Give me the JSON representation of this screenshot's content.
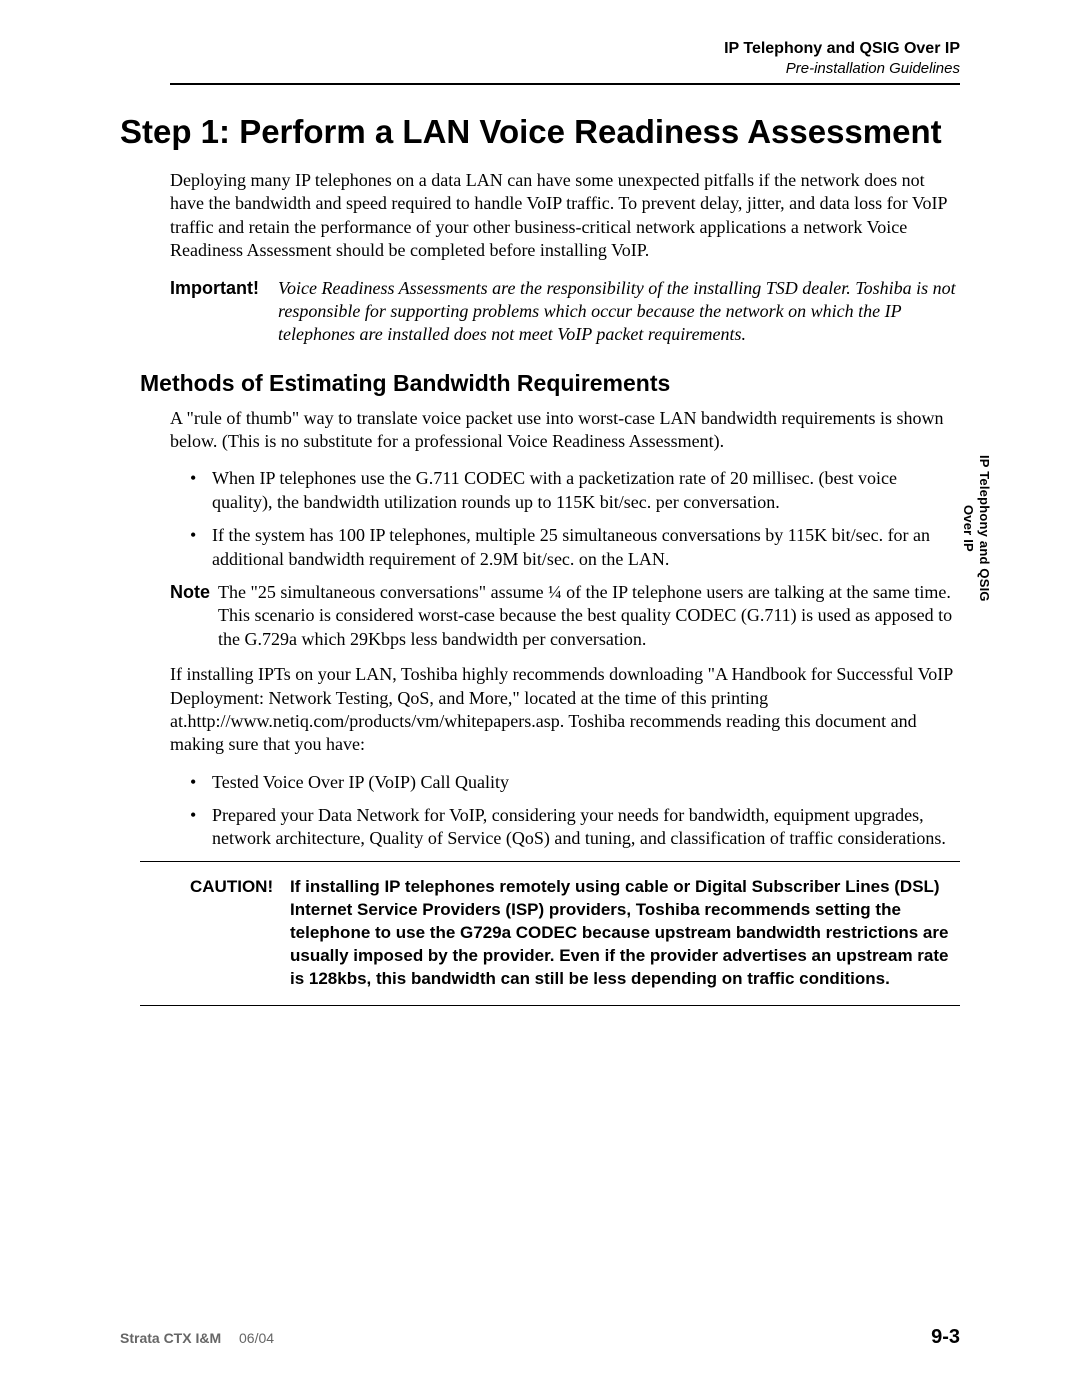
{
  "header": {
    "title": "IP Telephony and QSIG Over IP",
    "subtitle": "Pre-installation Guidelines"
  },
  "main": {
    "step_title": "Step 1:  Perform a LAN Voice Readiness Assessment",
    "intro": "Deploying many IP telephones on a data LAN can have some unexpected pitfalls if the network does not have the bandwidth and speed required to handle VoIP traffic. To prevent delay, jitter, and data loss for VoIP traffic and retain the performance of your other business-critical network applications a network Voice Readiness Assessment should be completed before installing VoIP.",
    "important_label": "Important!",
    "important_text": "Voice Readiness Assessments are the responsibility of the installing TSD dealer. Toshiba is not responsible for supporting problems which occur because the network on which the IP telephones are installed does not meet VoIP packet requirements.",
    "subheading": "Methods of Estimating Bandwidth Requirements",
    "sub_intro": "A \"rule of thumb\" way to translate voice packet use into worst-case LAN bandwidth requirements is shown below. (This is no substitute for a professional Voice Readiness Assessment).",
    "bullets1": [
      "When IP telephones use the G.711 CODEC with a packetization rate of 20 millisec. (best voice quality), the bandwidth utilization rounds up to 115K bit/sec. per conversation.",
      "If the system has 100 IP telephones, multiple 25 simultaneous conversations by 115K bit/sec. for an additional bandwidth requirement of 2.9M bit/sec. on the LAN."
    ],
    "note_label": "Note",
    "note_text": "The \"25 simultaneous conversations\" assume ¼ of the IP telephone users are talking at the same time. This scenario is considered worst-case because the best quality CODEC (G.711) is used as apposed to the G.729a which 29Kbps less bandwidth per conversation.",
    "para2": "If installing IPTs on your LAN, Toshiba highly recommends downloading \"A Handbook for Successful VoIP Deployment: Network Testing, QoS, and More,\" located at the time of this printing at.http://www.netiq.com/products/vm/whitepapers.asp. Toshiba recommends reading this document and making sure that you have:",
    "bullets2": [
      "Tested Voice Over IP (VoIP) Call Quality",
      "Prepared your Data Network for VoIP, considering your needs for bandwidth, equipment upgrades, network architecture, Quality of Service (QoS) and tuning, and classification of traffic considerations."
    ],
    "caution_label": "CAUTION!",
    "caution_text": "If installing IP telephones remotely using cable or Digital Subscriber Lines (DSL) Internet Service Providers (ISP) providers, Toshiba recommends setting the telephone to use the G729a CODEC because upstream bandwidth restrictions are usually imposed by the provider. Even if the provider advertises an upstream rate is 128kbs, this bandwidth can still be less depending on traffic conditions."
  },
  "side_tab": "IP Telephony and QSIG\nOver IP",
  "footer": {
    "doc": "Strata CTX I&M",
    "date": "06/04",
    "page": "9-3"
  }
}
